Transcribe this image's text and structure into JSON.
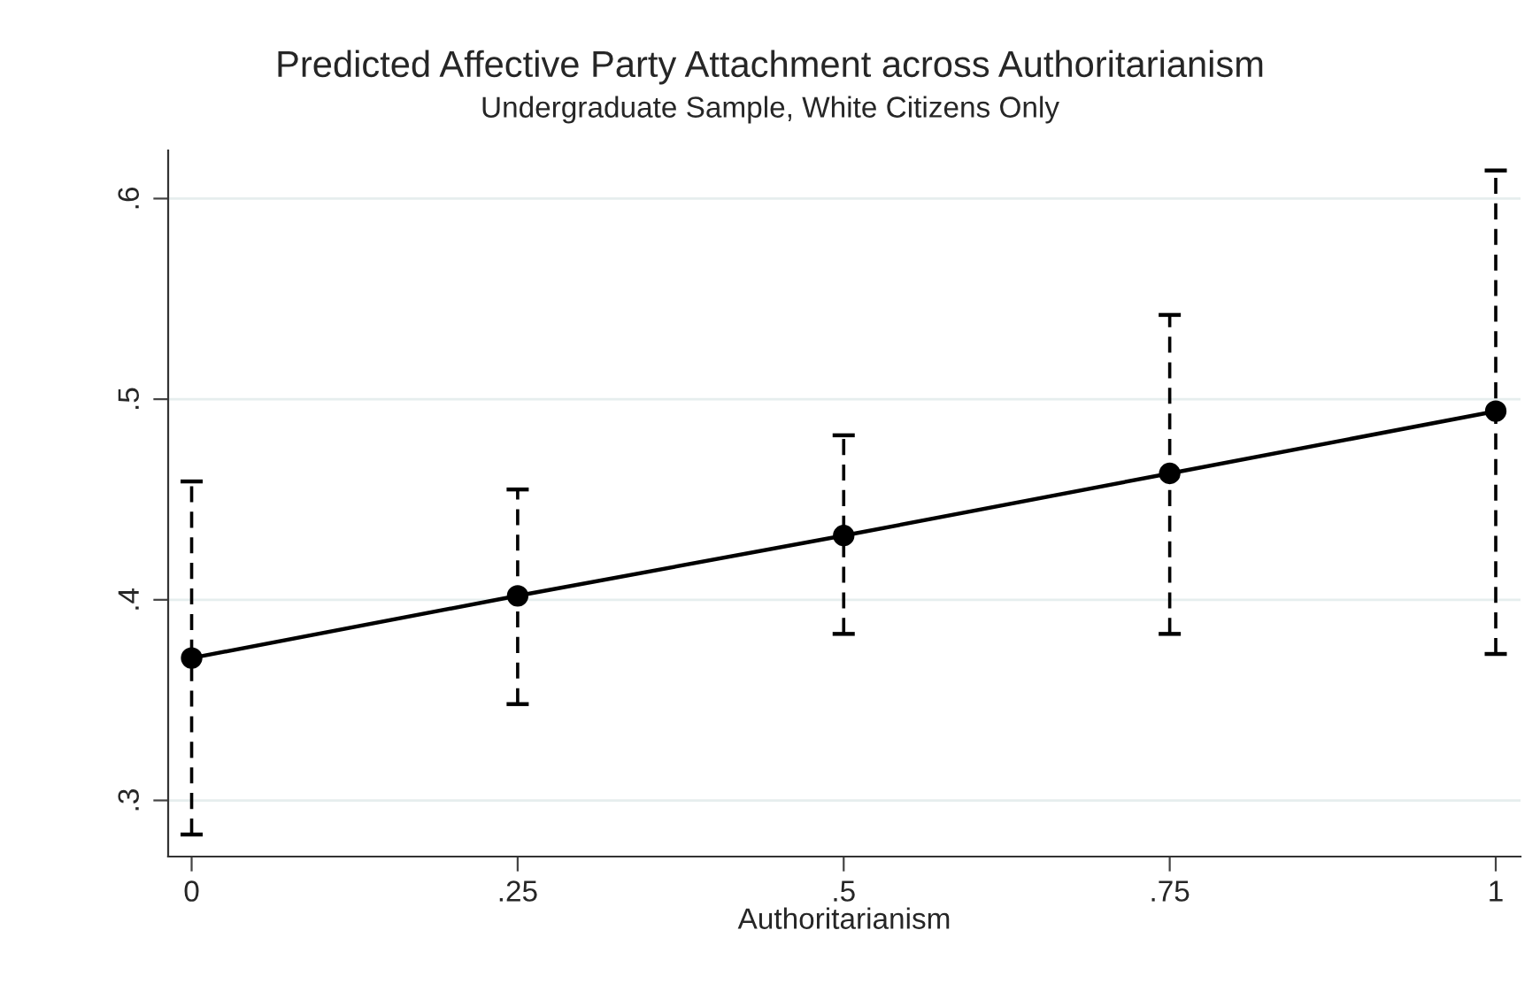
{
  "chart_data": {
    "type": "line",
    "title": "Predicted Affective Party Attachment across Authoritarianism",
    "subtitle": "Undergraduate Sample, White Citizens Only",
    "xlabel": "Authoritarianism",
    "x": [
      0,
      0.25,
      0.5,
      0.75,
      1
    ],
    "series": [
      {
        "color": "#000000",
        "values": [
          0.371,
          0.402,
          0.432,
          0.463,
          0.494
        ],
        "errors": [
          [
            0.283,
            0.459
          ],
          [
            0.348,
            0.455
          ],
          [
            0.383,
            0.482
          ],
          [
            0.383,
            0.542
          ],
          [
            0.373,
            0.614
          ]
        ]
      }
    ],
    "xlim": [
      -0.018,
      1.019
    ],
    "xticks": [
      0,
      {
        "value": 0.25,
        "label": ".25"
      },
      {
        "value": 0.5,
        "label": ".5"
      },
      {
        "value": 0.75,
        "label": ".75"
      },
      1
    ],
    "ylim": [
      0.272,
      0.624
    ],
    "yticks": [
      {
        "value": 0.3,
        "label": ".3"
      },
      {
        "value": 0.4,
        "label": ".4"
      },
      {
        "value": 0.5,
        "label": ".5"
      },
      {
        "value": 0.6,
        "label": ".6"
      }
    ],
    "grid": "y",
    "marker": "circle",
    "line_style": "solid"
  }
}
